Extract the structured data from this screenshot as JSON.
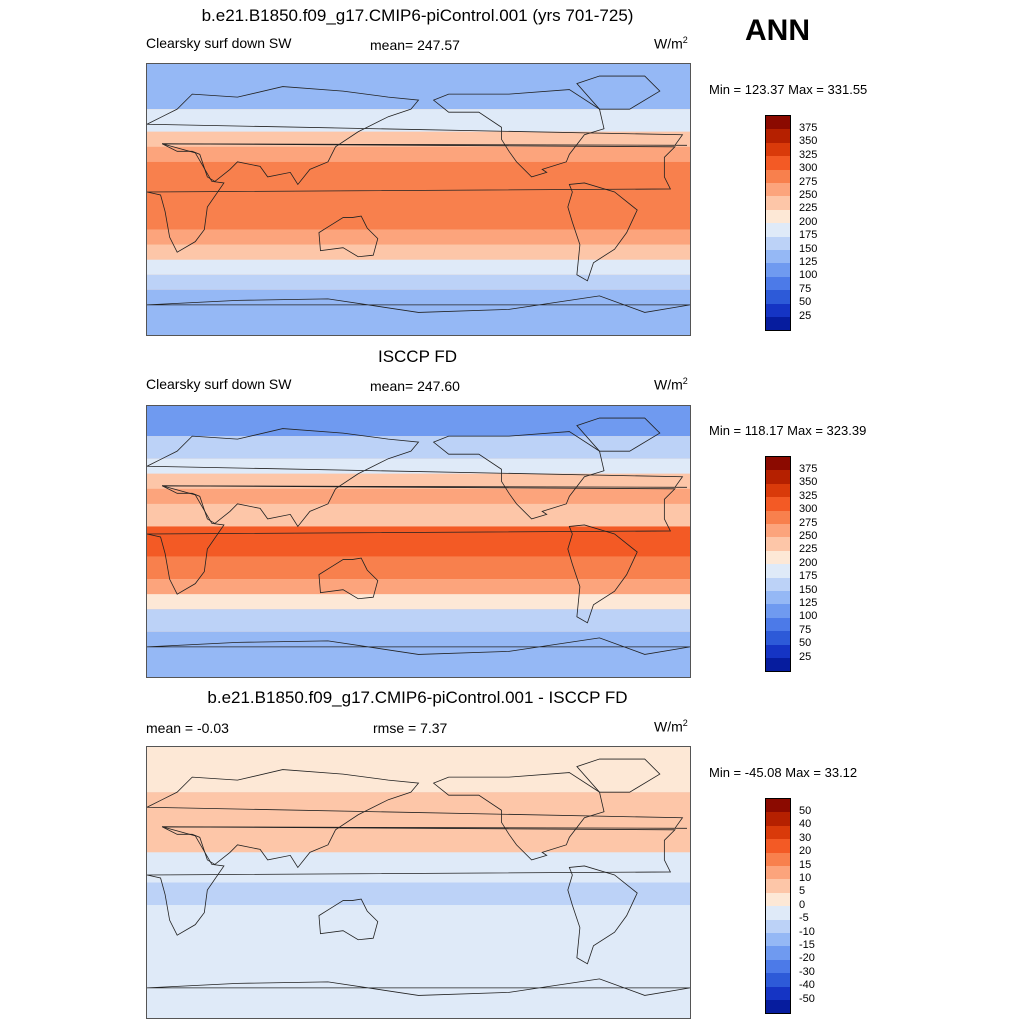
{
  "season": "ANN",
  "units_text": "W/m",
  "units_sup": "2",
  "panels": [
    {
      "title": "b.e21.B1850.f09_g17.CMIP6-piControl.001 (yrs 701-725)",
      "left_label": "Clearsky surf down SW",
      "center_label": "mean= 247.57",
      "minmax": "Min = 123.37 Max = 331.55"
    },
    {
      "title": "ISCCP FD",
      "left_label": "Clearsky surf down SW",
      "center_label": "mean= 247.60",
      "minmax": "Min = 118.17 Max = 323.39"
    },
    {
      "title": "b.e21.B1850.f09_g17.CMIP6-piControl.001 - ISCCP FD",
      "left_label": "mean =  -0.03",
      "center_label": "rmse =   7.37",
      "minmax": "Min = -45.08 Max =  33.12"
    }
  ],
  "chart_data": [
    {
      "type": "heatmap",
      "title": "b.e21.B1850.f09_g17.CMIP6-piControl.001 (yrs 701-725)",
      "variable": "Clearsky surf down SW",
      "units": "W/m2",
      "mean": 247.57,
      "min": 123.37,
      "max": 331.55,
      "colorbar_levels": [
        375,
        350,
        325,
        300,
        275,
        250,
        225,
        200,
        175,
        150,
        125,
        100,
        75,
        50,
        25
      ],
      "colorbar_colors": [
        "#8b0a00",
        "#b52000",
        "#d93a0a",
        "#f35a25",
        "#f8804d",
        "#fca47c",
        "#fdc6a8",
        "#fde8d6",
        "#dfeaf8",
        "#bcd2f7",
        "#95b8f5",
        "#6f9af0",
        "#4c7ae8",
        "#2d5ad8",
        "#1534c4",
        "#061c9e"
      ],
      "lat_bands": [
        {
          "lat": [
            60,
            90
          ],
          "value": 135
        },
        {
          "lat": [
            45,
            60
          ],
          "value": 185
        },
        {
          "lat": [
            35,
            45
          ],
          "value": 235
        },
        {
          "lat": [
            25,
            35
          ],
          "value": 265
        },
        {
          "lat": [
            -20,
            25
          ],
          "value": 292
        },
        {
          "lat": [
            -30,
            -20
          ],
          "value": 265
        },
        {
          "lat": [
            -40,
            -30
          ],
          "value": 235
        },
        {
          "lat": [
            -50,
            -40
          ],
          "value": 195
        },
        {
          "lat": [
            -60,
            -50
          ],
          "value": 165
        },
        {
          "lat": [
            -90,
            -60
          ],
          "value": 140
        }
      ]
    },
    {
      "type": "heatmap",
      "title": "ISCCP FD",
      "variable": "Clearsky surf down SW",
      "units": "W/m2",
      "mean": 247.6,
      "min": 118.17,
      "max": 323.39,
      "colorbar_levels": [
        375,
        350,
        325,
        300,
        275,
        250,
        225,
        200,
        175,
        150,
        125,
        100,
        75,
        50,
        25
      ],
      "colorbar_colors": [
        "#8b0a00",
        "#b52000",
        "#d93a0a",
        "#f35a25",
        "#f8804d",
        "#fca47c",
        "#fdc6a8",
        "#fde8d6",
        "#dfeaf8",
        "#bcd2f7",
        "#95b8f5",
        "#6f9af0",
        "#4c7ae8",
        "#2d5ad8",
        "#1534c4",
        "#061c9e"
      ],
      "lat_bands": [
        {
          "lat": [
            70,
            90
          ],
          "value": 120
        },
        {
          "lat": [
            55,
            70
          ],
          "value": 155
        },
        {
          "lat": [
            45,
            55
          ],
          "value": 190
        },
        {
          "lat": [
            35,
            45
          ],
          "value": 235
        },
        {
          "lat": [
            25,
            35
          ],
          "value": 265
        },
        {
          "lat": [
            -10,
            10
          ],
          "value": 310
        },
        {
          "lat": [
            -25,
            -10
          ],
          "value": 290
        },
        {
          "lat": [
            -35,
            -25
          ],
          "value": 255
        },
        {
          "lat": [
            -45,
            -35
          ],
          "value": 215
        },
        {
          "lat": [
            -60,
            -45
          ],
          "value": 165
        },
        {
          "lat": [
            -90,
            -60
          ],
          "value": 130
        }
      ]
    },
    {
      "type": "heatmap",
      "title": "b.e21.B1850.f09_g17.CMIP6-piControl.001 - ISCCP FD",
      "units": "W/m2",
      "mean": -0.03,
      "rmse": 7.37,
      "min": -45.08,
      "max": 33.12,
      "colorbar_levels": [
        50,
        40,
        30,
        20,
        15,
        10,
        5,
        0,
        -5,
        -10,
        -15,
        -20,
        -30,
        -40,
        -50
      ],
      "colorbar_colors": [
        "#8b0a00",
        "#b52000",
        "#d93a0a",
        "#f35a25",
        "#f8804d",
        "#fca47c",
        "#fdc6a8",
        "#fde8d6",
        "#dfeaf8",
        "#bcd2f7",
        "#95b8f5",
        "#6f9af0",
        "#4c7ae8",
        "#2d5ad8",
        "#1534c4",
        "#061c9e"
      ],
      "lat_bands": [
        {
          "lat": [
            60,
            90
          ],
          "value": 3
        },
        {
          "lat": [
            20,
            60
          ],
          "value": 8
        },
        {
          "lat": [
            0,
            20
          ],
          "value": -4
        },
        {
          "lat": [
            -15,
            0
          ],
          "value": -8
        },
        {
          "lat": [
            -90,
            -15
          ],
          "value": -3
        }
      ]
    }
  ]
}
